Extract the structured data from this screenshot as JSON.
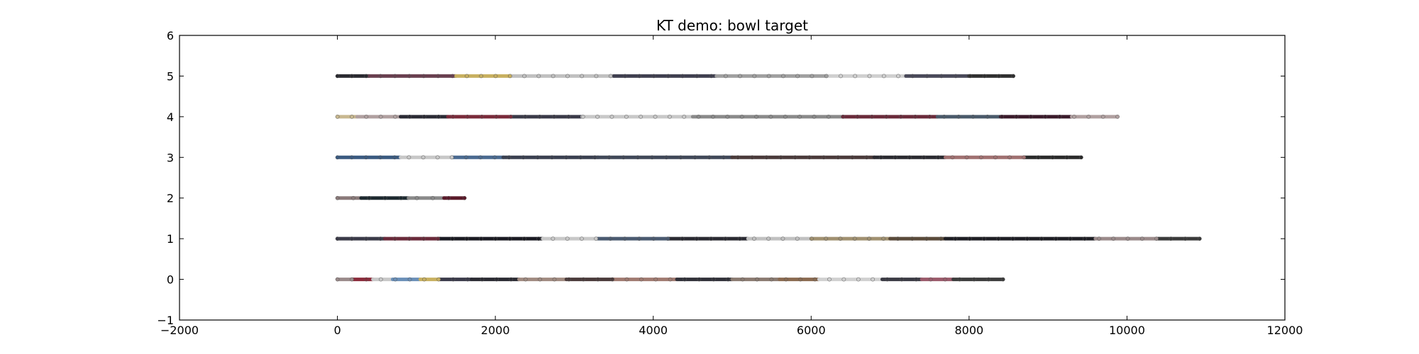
{
  "chart_data": {
    "type": "scatter",
    "title": "KT demo: bowl target",
    "xlabel": "",
    "ylabel": "",
    "xlim": [
      -2000,
      12000
    ],
    "ylim": [
      -1,
      6
    ],
    "xticks": [
      -2000,
      0,
      2000,
      4000,
      6000,
      8000,
      10000,
      12000
    ],
    "yticks": [
      -1,
      0,
      1,
      2,
      3,
      4,
      5,
      6
    ],
    "grid": false,
    "series": [
      {
        "y": 0,
        "x_range": [
          0,
          8430
        ],
        "segments": [
          {
            "x": [
              0,
              200
            ],
            "color": "#9a8a8a"
          },
          {
            "x": [
              200,
              450
            ],
            "color": "#8a2a3a"
          },
          {
            "x": [
              450,
              700
            ],
            "color": "#c8c8c8"
          },
          {
            "x": [
              700,
              1050
            ],
            "color": "#6a8fb8"
          },
          {
            "x": [
              1050,
              1300
            ],
            "color": "#c8b060"
          },
          {
            "x": [
              1300,
              1700
            ],
            "color": "#3a3a4a"
          },
          {
            "x": [
              1700,
              2300
            ],
            "color": "#2a2a32"
          },
          {
            "x": [
              2300,
              2900
            ],
            "color": "#a08a80"
          },
          {
            "x": [
              2900,
              3500
            ],
            "color": "#4a3a3a"
          },
          {
            "x": [
              3500,
              4300
            ],
            "color": "#a07a70"
          },
          {
            "x": [
              4300,
              5000
            ],
            "color": "#303038"
          },
          {
            "x": [
              5000,
              5600
            ],
            "color": "#8a7a70"
          },
          {
            "x": [
              5600,
              6100
            ],
            "color": "#8a6a50"
          },
          {
            "x": [
              6100,
              6900
            ],
            "color": "#d0d0d0"
          },
          {
            "x": [
              6900,
              7400
            ],
            "color": "#3a3a44"
          },
          {
            "x": [
              7400,
              7800
            ],
            "color": "#9a5a6a"
          },
          {
            "x": [
              7800,
              8430
            ],
            "color": "#3c3c3c"
          }
        ]
      },
      {
        "y": 1,
        "x_range": [
          0,
          10920
        ],
        "segments": [
          {
            "x": [
              0,
              600
            ],
            "color": "#3a3a48"
          },
          {
            "x": [
              600,
              1300
            ],
            "color": "#6a2a3a"
          },
          {
            "x": [
              1300,
              2600
            ],
            "color": "#1a1a22"
          },
          {
            "x": [
              2600,
              3300
            ],
            "color": "#c8c8c8"
          },
          {
            "x": [
              3300,
              4200
            ],
            "color": "#4a5a70"
          },
          {
            "x": [
              4200,
              5200
            ],
            "color": "#2a2a32"
          },
          {
            "x": [
              5200,
              6000
            ],
            "color": "#c0c0c0"
          },
          {
            "x": [
              6000,
              7000
            ],
            "color": "#a09070"
          },
          {
            "x": [
              7000,
              7700
            ],
            "color": "#5a4a3a"
          },
          {
            "x": [
              7700,
              9600
            ],
            "color": "#1e1e24"
          },
          {
            "x": [
              9600,
              10400
            ],
            "color": "#9a8a8a"
          },
          {
            "x": [
              10400,
              10920
            ],
            "color": "#3a3a3a"
          }
        ]
      },
      {
        "y": 2,
        "x_range": [
          0,
          1610
        ],
        "segments": [
          {
            "x": [
              0,
              300
            ],
            "color": "#8a7a7a"
          },
          {
            "x": [
              300,
              900
            ],
            "color": "#1e2a30"
          },
          {
            "x": [
              900,
              1350
            ],
            "color": "#8a8a8a"
          },
          {
            "x": [
              1350,
              1610
            ],
            "color": "#5a1a2a"
          }
        ]
      },
      {
        "y": 3,
        "x_range": [
          0,
          9420
        ],
        "segments": [
          {
            "x": [
              0,
              800
            ],
            "color": "#3a5a80"
          },
          {
            "x": [
              800,
              1450
            ],
            "color": "#c8c8c8"
          },
          {
            "x": [
              1450,
              2100
            ],
            "color": "#4a6a90"
          },
          {
            "x": [
              2100,
              3300
            ],
            "color": "#3a4050"
          },
          {
            "x": [
              3300,
              5000
            ],
            "color": "#404858"
          },
          {
            "x": [
              5000,
              6800
            ],
            "color": "#4a3a3a"
          },
          {
            "x": [
              6800,
              7700
            ],
            "color": "#2a2a30"
          },
          {
            "x": [
              7700,
              8700
            ],
            "color": "#a07070"
          },
          {
            "x": [
              8700,
              9420
            ],
            "color": "#2a2a2a"
          }
        ]
      },
      {
        "y": 4,
        "x_range": [
          0,
          9880
        ],
        "segments": [
          {
            "x": [
              0,
              250
            ],
            "color": "#c8b890"
          },
          {
            "x": [
              250,
              800
            ],
            "color": "#b0a0a0"
          },
          {
            "x": [
              800,
              1400
            ],
            "color": "#2a2a34"
          },
          {
            "x": [
              1400,
              2200
            ],
            "color": "#7a2a3a"
          },
          {
            "x": [
              2200,
              3100
            ],
            "color": "#3a3a48"
          },
          {
            "x": [
              3100,
              4500
            ],
            "color": "#c8c8c8"
          },
          {
            "x": [
              4500,
              6400
            ],
            "color": "#8a8a8a"
          },
          {
            "x": [
              6400,
              7600
            ],
            "color": "#6a2a3a"
          },
          {
            "x": [
              7600,
              8400
            ],
            "color": "#4a5a6a"
          },
          {
            "x": [
              8400,
              9300
            ],
            "color": "#3a1a2a"
          },
          {
            "x": [
              9300,
              9880
            ],
            "color": "#b0a0a0"
          }
        ]
      },
      {
        "y": 5,
        "x_range": [
          0,
          8560
        ],
        "segments": [
          {
            "x": [
              0,
              400
            ],
            "color": "#2a2a30"
          },
          {
            "x": [
              400,
              1500
            ],
            "color": "#6a4050"
          },
          {
            "x": [
              1500,
              2200
            ],
            "color": "#c8b060"
          },
          {
            "x": [
              2200,
              3500
            ],
            "color": "#c0c0c0"
          },
          {
            "x": [
              3500,
              4800
            ],
            "color": "#404050"
          },
          {
            "x": [
              4800,
              6200
            ],
            "color": "#a0a0a0"
          },
          {
            "x": [
              6200,
              7200
            ],
            "color": "#d0d0d0"
          },
          {
            "x": [
              7200,
              8000
            ],
            "color": "#4a4a5a"
          },
          {
            "x": [
              8000,
              8560
            ],
            "color": "#303030"
          }
        ]
      }
    ]
  }
}
